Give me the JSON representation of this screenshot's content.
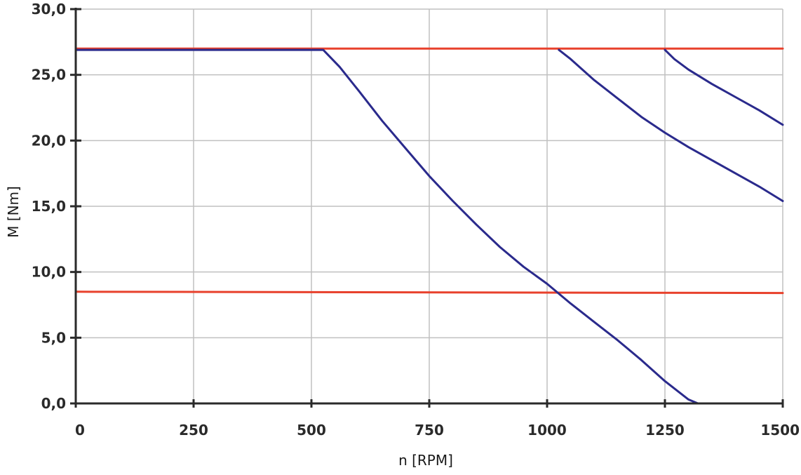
{
  "chart_data": {
    "type": "line",
    "title": "",
    "xlabel": "n [RPM]",
    "ylabel": "M [Nm]",
    "xlim": [
      0,
      1500
    ],
    "ylim": [
      0,
      30
    ],
    "x_ticks": [
      0,
      250,
      500,
      750,
      1000,
      1250,
      1500
    ],
    "x_tick_labels": [
      "0",
      "250",
      "500",
      "750",
      "1000",
      "1250",
      "1500"
    ],
    "y_ticks": [
      0,
      5,
      10,
      15,
      20,
      25,
      30
    ],
    "y_tick_labels": [
      "0,0",
      "5,0",
      "10,0",
      "15,0",
      "20,0",
      "25,0",
      "30,0"
    ],
    "grid": true,
    "legend": "none",
    "colors": {
      "grid": "#c0c0c0",
      "axis": "#2a2a2a",
      "red": "#e8412c",
      "blue": "#2a2a8c"
    },
    "series": [
      {
        "color": "#e8412c",
        "points": [
          [
            0,
            27.0
          ],
          [
            1500,
            27.0
          ]
        ]
      },
      {
        "color": "#e8412c",
        "points": [
          [
            0,
            8.5
          ],
          [
            1500,
            8.4
          ]
        ]
      },
      {
        "color": "#2a2a8c",
        "points": [
          [
            0,
            26.9
          ],
          [
            525,
            26.9
          ],
          [
            560,
            25.6
          ],
          [
            600,
            23.8
          ],
          [
            650,
            21.5
          ],
          [
            700,
            19.4
          ],
          [
            750,
            17.3
          ],
          [
            800,
            15.4
          ],
          [
            850,
            13.6
          ],
          [
            900,
            11.9
          ],
          [
            950,
            10.4
          ],
          [
            1000,
            9.1
          ],
          [
            1050,
            7.6
          ],
          [
            1100,
            6.2
          ],
          [
            1150,
            4.8
          ],
          [
            1200,
            3.3
          ],
          [
            1250,
            1.7
          ],
          [
            1300,
            0.3
          ],
          [
            1320,
            0.0
          ]
        ]
      },
      {
        "color": "#2a2a8c",
        "points": [
          [
            1025,
            26.9
          ],
          [
            1050,
            26.2
          ],
          [
            1100,
            24.6
          ],
          [
            1150,
            23.2
          ],
          [
            1200,
            21.8
          ],
          [
            1250,
            20.6
          ],
          [
            1300,
            19.5
          ],
          [
            1350,
            18.5
          ],
          [
            1400,
            17.5
          ],
          [
            1450,
            16.5
          ],
          [
            1500,
            15.4
          ]
        ]
      },
      {
        "color": "#2a2a8c",
        "points": [
          [
            1250,
            26.9
          ],
          [
            1270,
            26.2
          ],
          [
            1300,
            25.4
          ],
          [
            1350,
            24.3
          ],
          [
            1400,
            23.3
          ],
          [
            1450,
            22.3
          ],
          [
            1500,
            21.2
          ]
        ]
      }
    ]
  }
}
